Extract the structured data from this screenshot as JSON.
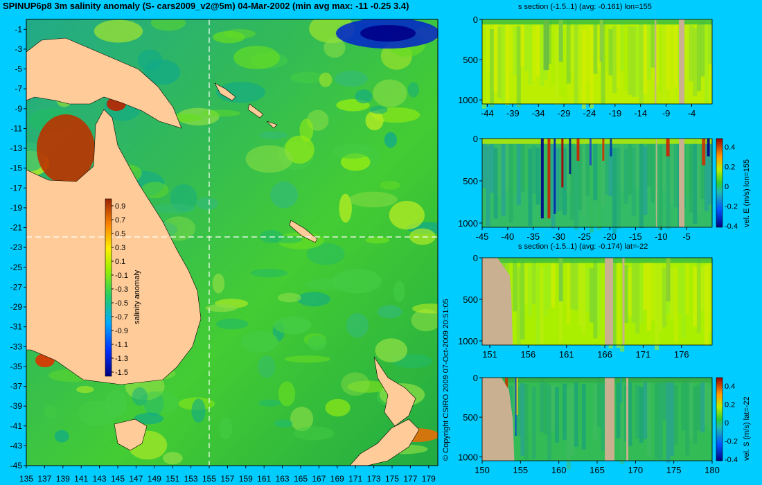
{
  "title": "SPINUP6p8 3m salinity anomaly (S- cars2009_v2@5m) 04-Mar-2002 (min avg max: -11 -0.25 3.4)",
  "copyright": "© Copyright CSIRO 2009    07-Oct-2009 20:51:05",
  "colors": {
    "background": "#00ccff",
    "land": "#ffcc99",
    "section_land": "#c8b090",
    "ocean_mid": "#22bb44",
    "crosshair": "#ffffff"
  },
  "chart_data": [
    {
      "type": "heatmap",
      "name": "map",
      "title": "SPINUP6p8 3m salinity anomaly (S- cars2009_v2@5m) 04-Mar-2002 (min avg max: -11 -0.25 3.4)",
      "xlim": [
        135,
        180
      ],
      "ylim": [
        -45,
        0
      ],
      "x_ticks": [
        135,
        137,
        139,
        141,
        143,
        145,
        147,
        149,
        151,
        153,
        155,
        157,
        159,
        161,
        163,
        165,
        167,
        169,
        171,
        173,
        175,
        177,
        179
      ],
      "y_ticks": [
        -1,
        -3,
        -5,
        -7,
        -9,
        -11,
        -13,
        -15,
        -17,
        -19,
        -21,
        -23,
        -25,
        -27,
        -29,
        -31,
        -33,
        -35,
        -37,
        -39,
        -41,
        -43,
        -45
      ],
      "crosshair": {
        "lon": 155,
        "lat": -22
      },
      "colorbar": {
        "label": "salinity anomaly",
        "ticks": [
          "0.9",
          "0.7",
          "0.5",
          "0.3",
          "0.1",
          "-0.1",
          "-0.3",
          "-0.5",
          "-0.7",
          "-0.9",
          "-1.1",
          "-1.3",
          "-1.5"
        ],
        "range": [
          -1.5,
          1.0
        ]
      }
    },
    {
      "type": "heatmap",
      "name": "s-section-lon",
      "title": "s section (-1.5..1) (avg: -0.161) lon=155",
      "xlim": [
        -45,
        0
      ],
      "ylim": [
        1050,
        0
      ],
      "x_ticks": [
        "-44",
        "-39",
        "-34",
        "-29",
        "-24",
        "-19",
        "-14",
        "-9",
        "-4"
      ],
      "y_ticks": [
        "0",
        "500",
        "1000"
      ]
    },
    {
      "type": "heatmap",
      "name": "vel-e-section",
      "title": "",
      "xlim": [
        -45,
        0
      ],
      "ylim": [
        1050,
        0
      ],
      "x_ticks": [
        "-45",
        "-40",
        "-35",
        "-30",
        "-25",
        "-20",
        "-15",
        "-10",
        "-5"
      ],
      "y_ticks": [
        "0",
        "500",
        "1000"
      ],
      "colorbar": {
        "label": "vel. E (m/s) lon=155",
        "ticks": [
          "0.4",
          "0.2",
          "0",
          "-0.2",
          "-0.4"
        ]
      }
    },
    {
      "type": "heatmap",
      "name": "s-section-lat",
      "title": "s section (-1.5..1) (avg: -0.174) lat=-22",
      "xlim": [
        150,
        180
      ],
      "ylim": [
        1050,
        0
      ],
      "x_ticks": [
        "151",
        "156",
        "161",
        "166",
        "171",
        "176"
      ],
      "y_ticks": [
        "0",
        "500",
        "1000"
      ]
    },
    {
      "type": "heatmap",
      "name": "vel-s-section",
      "title": "",
      "xlim": [
        150,
        180
      ],
      "ylim": [
        1050,
        0
      ],
      "x_ticks": [
        "150",
        "155",
        "160",
        "165",
        "170",
        "175",
        "180"
      ],
      "y_ticks": [
        "0",
        "500",
        "1000"
      ],
      "colorbar": {
        "label": "vel. S (m/s) lat=-22",
        "ticks": [
          "0.4",
          "0.2",
          "0",
          "-0.2",
          "-0.4"
        ]
      }
    }
  ]
}
